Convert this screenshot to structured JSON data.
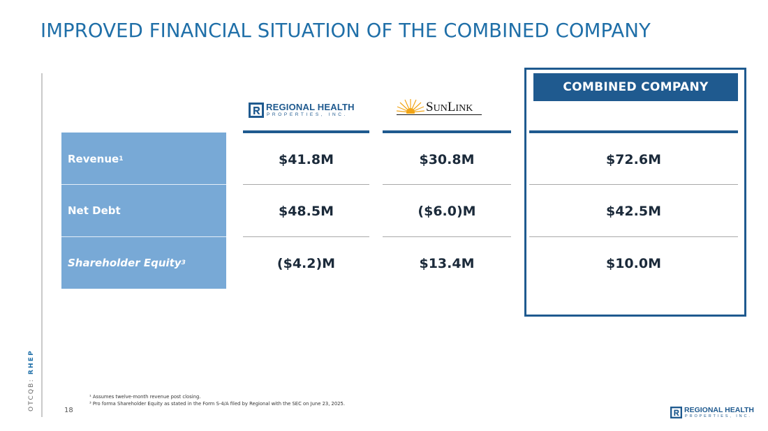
{
  "title": "IMPROVED FINANCIAL SITUATION OF THE COMBINED COMPANY",
  "side_label": {
    "prefix": "OTCQB: ",
    "ticker": "RHEP"
  },
  "page_number": "18",
  "logos": {
    "regional": {
      "line1": "REGIONAL HEALTH",
      "line2": "PROPERTIES, INC."
    },
    "sunlink": {
      "text_big_s": "S",
      "text_un": "UN",
      "text_big_l": "L",
      "text_ink": "INK"
    },
    "footer_regional": {
      "line1": "REGIONAL HEALTH",
      "line2": "PROPERTIES, INC."
    }
  },
  "combined_header": "COMBINED COMPANY",
  "rows": [
    {
      "label": "Revenue",
      "sup": "1",
      "regional": "$41.8M",
      "sunlink": "$30.8M",
      "combined": "$72.6M"
    },
    {
      "label": "Net Debt",
      "sup": "",
      "regional": "$48.5M",
      "sunlink": "($6.0)M",
      "combined": "$42.5M"
    },
    {
      "label": "Shareholder Equity",
      "sup": "3",
      "regional": "($4.2)M",
      "sunlink": "$13.4M",
      "combined": "$10.0M"
    }
  ],
  "footnotes": [
    "¹ Assumes twelve-month revenue post closing.",
    "³ Pro forma Shareholder Equity as stated in the Form S-4/A filed by Regional with the SEC on June 23, 2025."
  ],
  "colors": {
    "title": "#1f6fa8",
    "navy": "#1f5a8f",
    "row_fill": "#78a9d6",
    "sun": "#f2a516"
  }
}
